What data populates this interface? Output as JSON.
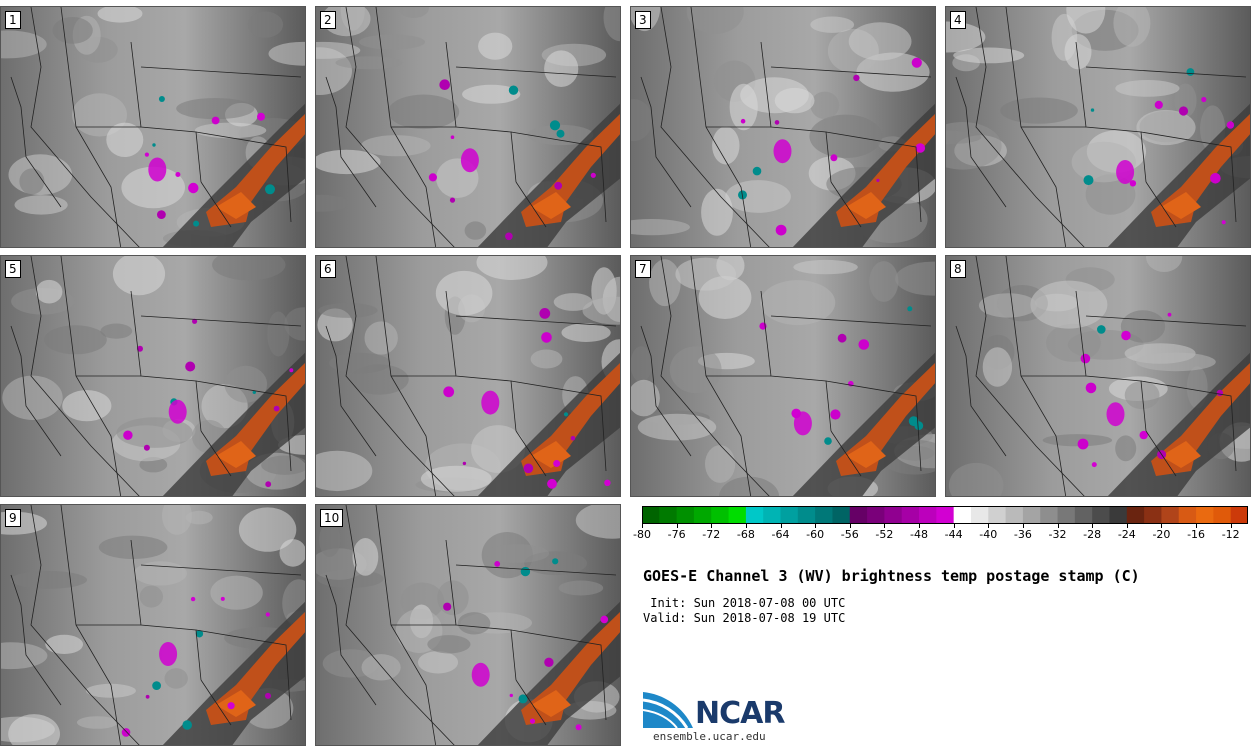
{
  "panels": [
    {
      "label": "1"
    },
    {
      "label": "2"
    },
    {
      "label": "3"
    },
    {
      "label": "4"
    },
    {
      "label": "5"
    },
    {
      "label": "6"
    },
    {
      "label": "7"
    },
    {
      "label": "8"
    },
    {
      "label": "9"
    },
    {
      "label": "10"
    }
  ],
  "colorbar": {
    "min": -80,
    "max": -10,
    "step": 2,
    "tick_labels": [
      "-80",
      "-76",
      "-72",
      "-68",
      "-64",
      "-60",
      "-56",
      "-52",
      "-48",
      "-44",
      "-40",
      "-36",
      "-32",
      "-28",
      "-24",
      "-20",
      "-16",
      "-12"
    ],
    "colors": [
      "#006400",
      "#007a00",
      "#009000",
      "#00a800",
      "#00c000",
      "#00dd00",
      "#00c8c8",
      "#00b4b4",
      "#00a0a0",
      "#008c8c",
      "#007878",
      "#006464",
      "#660066",
      "#7a007a",
      "#900090",
      "#a600a6",
      "#bc00bc",
      "#d200d2",
      "#ffffff",
      "#e8e8e8",
      "#d0d0d0",
      "#bababa",
      "#a4a4a4",
      "#8e8e8e",
      "#787878",
      "#626262",
      "#4c4c4c",
      "#3a3a3a",
      "#6a2410",
      "#8a3014",
      "#b0441a",
      "#d85a14",
      "#ea6a10",
      "#e05a0a",
      "#cc3a0a"
    ]
  },
  "title": "GOES-E Channel 3 (WV) brightness temp postage stamp (C)",
  "init": " Init: Sun 2018-07-08 00 UTC",
  "valid": "Valid: Sun 2018-07-08 19 UTC",
  "logo": {
    "text": "NCAR",
    "site": "ensemble.ucar.edu",
    "color": "#1a3a6b",
    "accent": "#1e88c8"
  }
}
